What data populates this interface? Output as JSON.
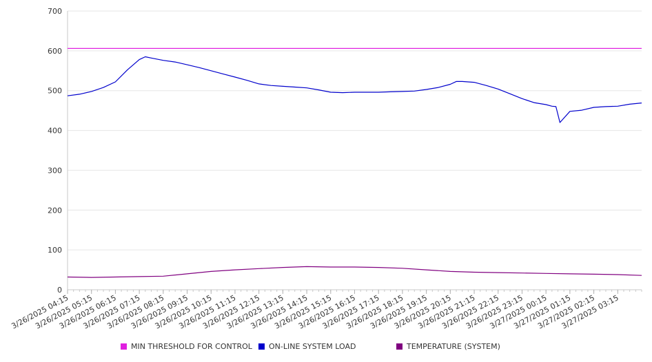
{
  "chart_data": {
    "type": "line",
    "title": "",
    "xlabel": "",
    "ylabel": "",
    "ylim": [
      0,
      700
    ],
    "y_ticks": [
      "0",
      "100",
      "200",
      "300",
      "400",
      "500",
      "600",
      "700"
    ],
    "x_tick_labels": [
      "3/26/2025 04:15",
      "3/26/2025 05:15",
      "3/26/2025 06:15",
      "3/26/2025 07:15",
      "3/26/2025 08:15",
      "3/26/2025 09:15",
      "3/26/2025 10:15",
      "3/26/2025 11:15",
      "3/26/2025 12:15",
      "3/26/2025 13:15",
      "3/26/2025 14:15",
      "3/26/2025 15:15",
      "3/26/2025 16:15",
      "3/26/2025 17:15",
      "3/26/2025 18:15",
      "3/26/2025 19:15",
      "3/26/2025 20:15",
      "3/26/2025 21:15",
      "3/26/2025 22:15",
      "3/26/2025 23:15",
      "3/27/2025 00:15",
      "3/27/2025 01:15",
      "3/27/2025 02:15",
      "3/27/2025 03:15"
    ],
    "grid": true,
    "legend_position": "bottom",
    "series": [
      {
        "name": "MIN THRESHOLD FOR CONTROL",
        "color": "#e020e0",
        "x": [
          "3/26/2025 04:15",
          "3/27/2025 04:15"
        ],
        "values": [
          606,
          606
        ]
      },
      {
        "name": "ON-LINE SYSTEM LOAD",
        "color": "#0000cc",
        "x": [
          "3/26/2025 04:15",
          "3/26/2025 04:45",
          "3/26/2025 05:15",
          "3/26/2025 05:45",
          "3/26/2025 06:15",
          "3/26/2025 06:45",
          "3/26/2025 07:15",
          "3/26/2025 07:30",
          "3/26/2025 07:45",
          "3/26/2025 08:15",
          "3/26/2025 08:45",
          "3/26/2025 09:15",
          "3/26/2025 09:45",
          "3/26/2025 10:15",
          "3/26/2025 10:45",
          "3/26/2025 11:15",
          "3/26/2025 11:45",
          "3/26/2025 12:15",
          "3/26/2025 12:45",
          "3/26/2025 13:15",
          "3/26/2025 13:45",
          "3/26/2025 14:15",
          "3/26/2025 14:45",
          "3/26/2025 15:15",
          "3/26/2025 15:45",
          "3/26/2025 16:15",
          "3/26/2025 16:45",
          "3/26/2025 17:15",
          "3/26/2025 17:45",
          "3/26/2025 18:15",
          "3/26/2025 18:45",
          "3/26/2025 19:15",
          "3/26/2025 19:45",
          "3/26/2025 20:15",
          "3/26/2025 20:30",
          "3/26/2025 20:45",
          "3/26/2025 21:15",
          "3/26/2025 21:45",
          "3/26/2025 22:15",
          "3/26/2025 22:45",
          "3/26/2025 23:15",
          "3/26/2025 23:45",
          "3/27/2025 00:15",
          "3/27/2025 00:30",
          "3/27/2025 00:40",
          "3/27/2025 00:50",
          "3/27/2025 01:15",
          "3/27/2025 01:45",
          "3/27/2025 02:15",
          "3/27/2025 02:45",
          "3/27/2025 03:15",
          "3/27/2025 03:45",
          "3/27/2025 04:15"
        ],
        "values": [
          487,
          491,
          498,
          508,
          522,
          552,
          578,
          585,
          582,
          576,
          572,
          565,
          558,
          550,
          542,
          534,
          526,
          517,
          513,
          511,
          509,
          507,
          502,
          496,
          495,
          496,
          496,
          496,
          497,
          498,
          499,
          503,
          508,
          516,
          523,
          523,
          521,
          513,
          504,
          492,
          480,
          470,
          465,
          461,
          460,
          420,
          448,
          451,
          458,
          460,
          461,
          466,
          469
        ]
      },
      {
        "name": "TEMPERATURE (SYSTEM)",
        "color": "#800080",
        "x": [
          "3/26/2025 04:15",
          "3/26/2025 05:15",
          "3/26/2025 06:15",
          "3/26/2025 07:15",
          "3/26/2025 08:15",
          "3/26/2025 09:15",
          "3/26/2025 10:15",
          "3/26/2025 11:15",
          "3/26/2025 12:15",
          "3/26/2025 13:15",
          "3/26/2025 14:15",
          "3/26/2025 15:15",
          "3/26/2025 16:15",
          "3/26/2025 17:15",
          "3/26/2025 18:15",
          "3/26/2025 19:15",
          "3/26/2025 20:15",
          "3/26/2025 21:15",
          "3/26/2025 22:15",
          "3/26/2025 23:15",
          "3/27/2025 00:15",
          "3/27/2025 01:15",
          "3/27/2025 02:15",
          "3/27/2025 03:15",
          "3/27/2025 04:15"
        ],
        "values": [
          32,
          31,
          32,
          33,
          34,
          40,
          46,
          50,
          53,
          56,
          58,
          57,
          57,
          56,
          54,
          50,
          46,
          44,
          43,
          42,
          41,
          40,
          39,
          38,
          36
        ]
      }
    ]
  }
}
